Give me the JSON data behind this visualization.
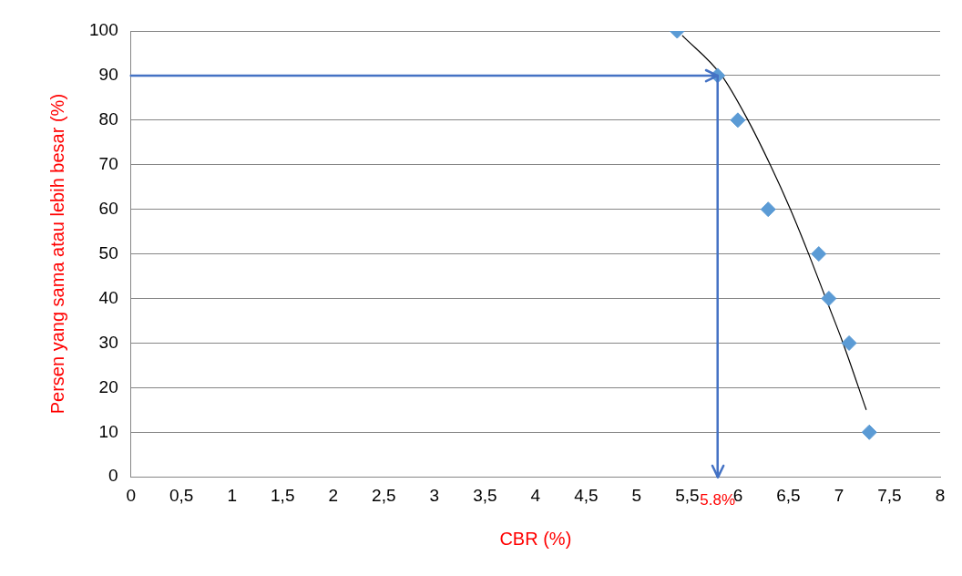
{
  "chart_data": {
    "type": "scatter",
    "xlabel": "CBR (%)",
    "ylabel": "Persen yang sama atau lebih besar (%)",
    "xlim": [
      0,
      8
    ],
    "xticks": [
      0,
      {
        "value": 0.5,
        "label": "0,5"
      },
      1,
      {
        "value": 1.5,
        "label": "1,5"
      },
      2,
      {
        "value": 2.5,
        "label": "2,5"
      },
      3,
      {
        "value": 3.5,
        "label": "3,5"
      },
      4,
      {
        "value": 4.5,
        "label": "4,5"
      },
      5,
      {
        "value": 5.5,
        "label": "5,5"
      },
      6,
      {
        "value": 6.5,
        "label": "6,5"
      },
      7,
      {
        "value": 7.5,
        "label": "7,5"
      },
      8
    ],
    "ylim": [
      0,
      100
    ],
    "yticks": [
      0,
      10,
      20,
      30,
      40,
      50,
      60,
      70,
      80,
      90,
      100
    ],
    "grid": "y",
    "legend": false,
    "marker": "diamond",
    "series": [
      {
        "color": "#5b9bd5",
        "x": [
          5.4,
          5.8,
          6.0,
          6.3,
          6.8,
          6.9,
          7.1,
          7.3
        ],
        "values": [
          100,
          90,
          80,
          60,
          50,
          40,
          30,
          10
        ]
      },
      {
        "type": "line",
        "color": "#000000",
        "marker": "none",
        "x": [
          5.45,
          5.84,
          6.1,
          6.32,
          6.52,
          6.7,
          6.87,
          7.04,
          7.27
        ],
        "values": [
          99,
          90,
          80,
          70,
          60,
          50,
          40,
          30,
          15
        ]
      }
    ],
    "ref_lines": [
      {
        "axis": "y",
        "value": 90,
        "color": "#4472c4"
      },
      {
        "axis": "x",
        "value": 5.8,
        "label": "5.8%",
        "color": "#4472c4"
      }
    ]
  }
}
